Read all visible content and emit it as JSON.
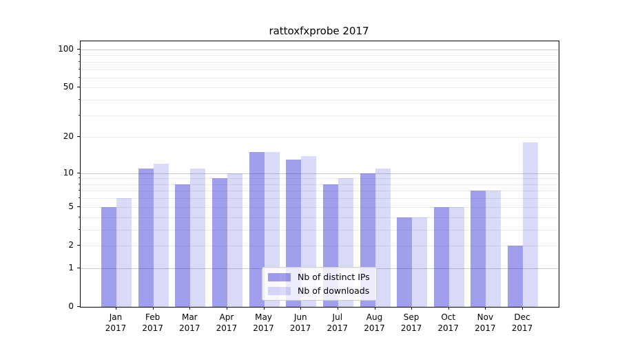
{
  "chart_data": {
    "type": "bar",
    "title": "rattoxfxprobe 2017",
    "categories": [
      "Jan",
      "Feb",
      "Mar",
      "Apr",
      "May",
      "Jun",
      "Jul",
      "Aug",
      "Sep",
      "Oct",
      "Nov",
      "Dec"
    ],
    "x_tick_second_line": "2017",
    "series": [
      {
        "name": "Nb of distinct IPs",
        "color": "rgba(60,60,220,0.49)",
        "values": [
          5,
          11,
          8,
          9,
          15,
          13,
          8,
          10,
          4,
          5,
          7,
          2
        ]
      },
      {
        "name": "Nb of downloads",
        "color": "rgba(60,60,220,0.195)",
        "values": [
          6,
          12,
          11,
          10,
          15,
          14,
          9,
          11,
          4,
          5,
          7,
          18
        ]
      }
    ],
    "yscale": "log1p",
    "ylim": [
      0,
      115
    ],
    "yticks": [
      0,
      1,
      2,
      5,
      10,
      20,
      50,
      100
    ],
    "major_gridlines": [
      1,
      10,
      100
    ],
    "minor_gridlines": [
      2,
      3,
      4,
      5,
      6,
      7,
      8,
      9,
      20,
      30,
      40,
      50,
      60,
      70,
      80,
      90
    ],
    "grid": true,
    "legend_position": "lower center",
    "colors": {
      "major_grid": "#c9c9c9",
      "minor_grid": "#eaeaea",
      "spine": "#000000",
      "text": "#000000"
    }
  }
}
